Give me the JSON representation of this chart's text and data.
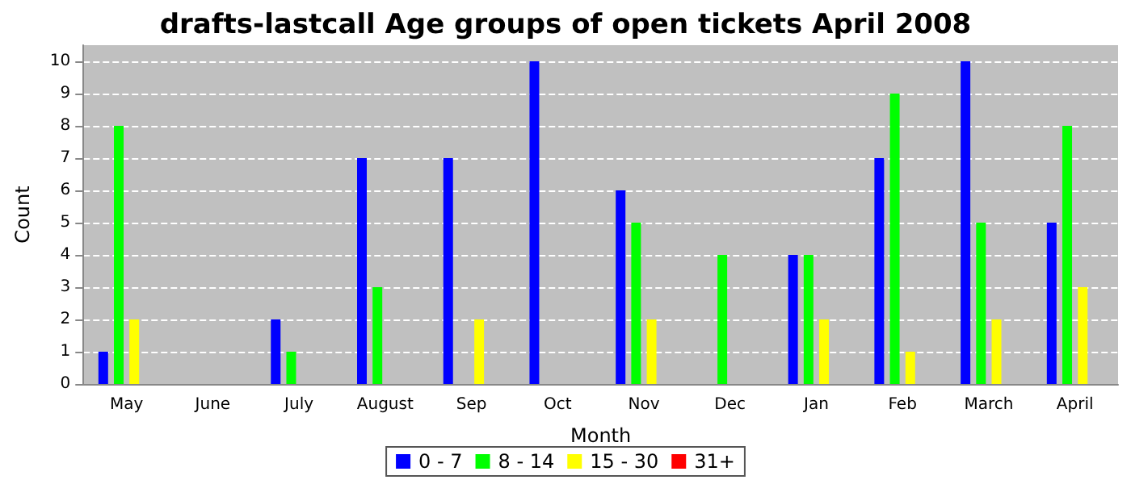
{
  "chart_data": {
    "type": "bar",
    "title": "drafts-lastcall Age groups of open tickets April 2008",
    "xlabel": "Month",
    "ylabel": "Count",
    "categories": [
      "May",
      "June",
      "July",
      "August",
      "Sep",
      "Oct",
      "Nov",
      "Dec",
      "Jan",
      "Feb",
      "March",
      "April"
    ],
    "series": [
      {
        "name": "0 - 7",
        "color": "#0000ff",
        "values": [
          1,
          0,
          2,
          7,
          7,
          10,
          6,
          0,
          4,
          7,
          10,
          5
        ]
      },
      {
        "name": "8 - 14",
        "color": "#00ff00",
        "values": [
          8,
          0,
          1,
          3,
          0,
          0,
          5,
          4,
          4,
          9,
          5,
          8
        ]
      },
      {
        "name": "15 - 30",
        "color": "#ffff00",
        "values": [
          2,
          0,
          0,
          0,
          2,
          0,
          2,
          0,
          2,
          1,
          2,
          3
        ]
      },
      {
        "name": "31+",
        "color": "#ff0000",
        "values": [
          0,
          0,
          0,
          0,
          0,
          0,
          0,
          0,
          0,
          0,
          0,
          0
        ]
      }
    ],
    "ylim": [
      0,
      10.5
    ],
    "yticks": [
      0,
      1,
      2,
      3,
      4,
      5,
      6,
      7,
      8,
      9,
      10
    ],
    "grid": "y",
    "legend": "bottom"
  }
}
